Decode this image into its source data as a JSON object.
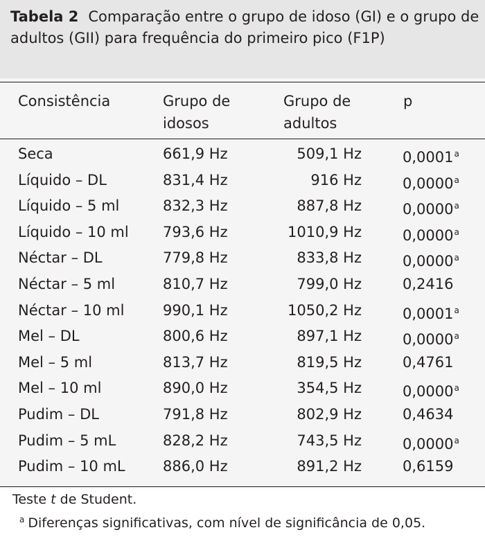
{
  "caption": {
    "label": "Tabela 2",
    "text": "Comparação entre o grupo de idoso (GI) e o grupo de adultos (GII) para frequência do primeiro pico (F1P)"
  },
  "table": {
    "headers": {
      "consistency": "Consistência",
      "group_elderly": "Grupo de idosos",
      "group_adults": "Grupo de adultos",
      "p": "p"
    },
    "rows": [
      {
        "consistency": "Seca",
        "elderly": "661,9 Hz",
        "adults": "509,1 Hz",
        "p": "0,0001",
        "mark": "a"
      },
      {
        "consistency": "Líquido – DL",
        "elderly": "831,4 Hz",
        "adults": "916 Hz",
        "p": "0,0000",
        "mark": "a"
      },
      {
        "consistency": "Líquido – 5 ml",
        "elderly": "832,3 Hz",
        "adults": "887,8 Hz",
        "p": "0,0000",
        "mark": "a"
      },
      {
        "consistency": "Líquido – 10 ml",
        "elderly": "793,6 Hz",
        "adults": "1010,9 Hz",
        "p": "0,0000",
        "mark": "a"
      },
      {
        "consistency": "Néctar – DL",
        "elderly": "779,8 Hz",
        "adults": "833,8 Hz",
        "p": "0,0000",
        "mark": "a"
      },
      {
        "consistency": "Néctar – 5 ml",
        "elderly": "810,7 Hz",
        "adults": "799,0 Hz",
        "p": "0,2416",
        "mark": ""
      },
      {
        "consistency": "Néctar – 10 ml",
        "elderly": "990,1 Hz",
        "adults": "1050,2 Hz",
        "p": "0,0001",
        "mark": "a"
      },
      {
        "consistency": "Mel – DL",
        "elderly": "800,6 Hz",
        "adults": "897,1 Hz",
        "p": "0,0000",
        "mark": "a"
      },
      {
        "consistency": "Mel – 5 ml",
        "elderly": "813,7 Hz",
        "adults": "819,5 Hz",
        "p": "0,4761",
        "mark": ""
      },
      {
        "consistency": "Mel – 10 ml",
        "elderly": "890,0 Hz",
        "adults": "354,5 Hz",
        "p": "0,0000",
        "mark": "a"
      },
      {
        "consistency": "Pudim – DL",
        "elderly": "791,8 Hz",
        "adults": "802,9 Hz",
        "p": "0,4634",
        "mark": ""
      },
      {
        "consistency": "Pudim – 5 mL",
        "elderly": "828,2 Hz",
        "adults": "743,5 Hz",
        "p": "0,0000",
        "mark": "a"
      },
      {
        "consistency": "Pudim – 10 mL",
        "elderly": "886,0 Hz",
        "adults": "891,2 Hz",
        "p": "0,6159",
        "mark": ""
      }
    ]
  },
  "notes": {
    "test_prefix": "Teste ",
    "test_var": "t",
    "test_suffix": " de Student.",
    "footnote_mark": "a",
    "footnote_text": "Diferenças significativas, com nível de significância de 0,05."
  },
  "colors": {
    "caption_bg": "#e6e6e6",
    "table_bg": "#f5f5f5",
    "text": "#231f20"
  }
}
